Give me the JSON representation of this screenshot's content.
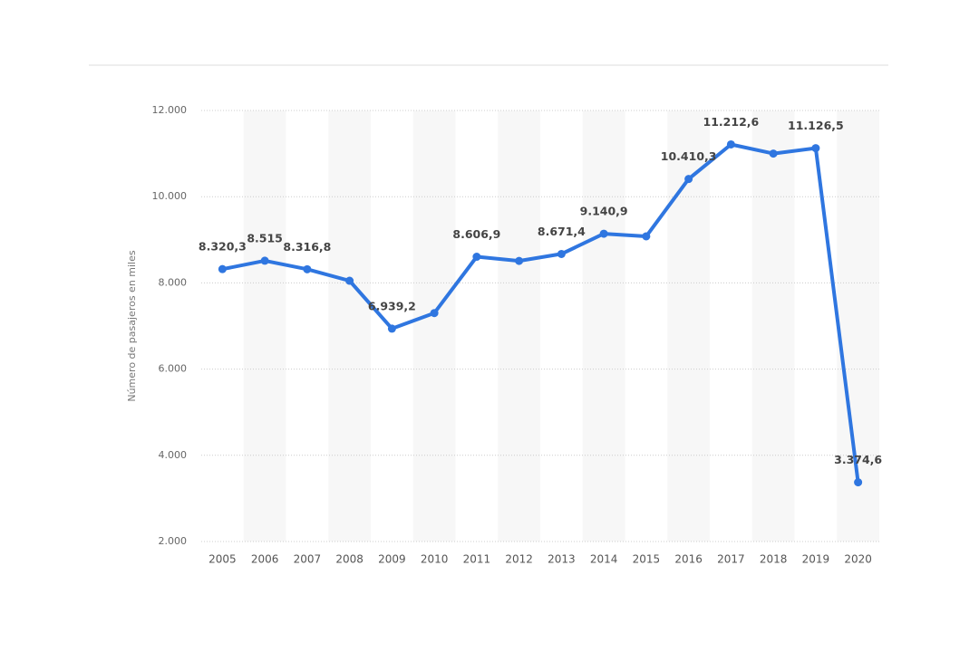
{
  "chart_data": {
    "type": "line",
    "y_label": "Número de pasajeros en miles",
    "categories": [
      "2005",
      "2006",
      "2007",
      "2008",
      "2009",
      "2010",
      "2011",
      "2012",
      "2013",
      "2014",
      "2015",
      "2016",
      "2017",
      "2018",
      "2019",
      "2020"
    ],
    "values": [
      8320.3,
      8515,
      8316.8,
      8050,
      6939.2,
      7300,
      8606.9,
      8510,
      8671.4,
      9140.9,
      9080,
      10410.3,
      11212.6,
      11000,
      11126.5,
      3374.6
    ],
    "value_labels": [
      "8.320,3",
      "8.515",
      "8.316,8",
      null,
      "6.939,2",
      null,
      "8.606,9",
      null,
      "8.671,4",
      "9.140,9",
      null,
      "10.410,3",
      "11.212,6",
      null,
      "11.126,5",
      "3.374,6"
    ],
    "color": "#2f76e0",
    "ylim": [
      2000,
      12000
    ],
    "yticks": [
      {
        "value": 2000,
        "label": "2.000"
      },
      {
        "value": 4000,
        "label": "4.000"
      },
      {
        "value": 6000,
        "label": "6.000"
      },
      {
        "value": 8000,
        "label": "8.000"
      },
      {
        "value": 10000,
        "label": "10.000"
      },
      {
        "value": 12000,
        "label": "12.000"
      }
    ],
    "grid": true
  }
}
